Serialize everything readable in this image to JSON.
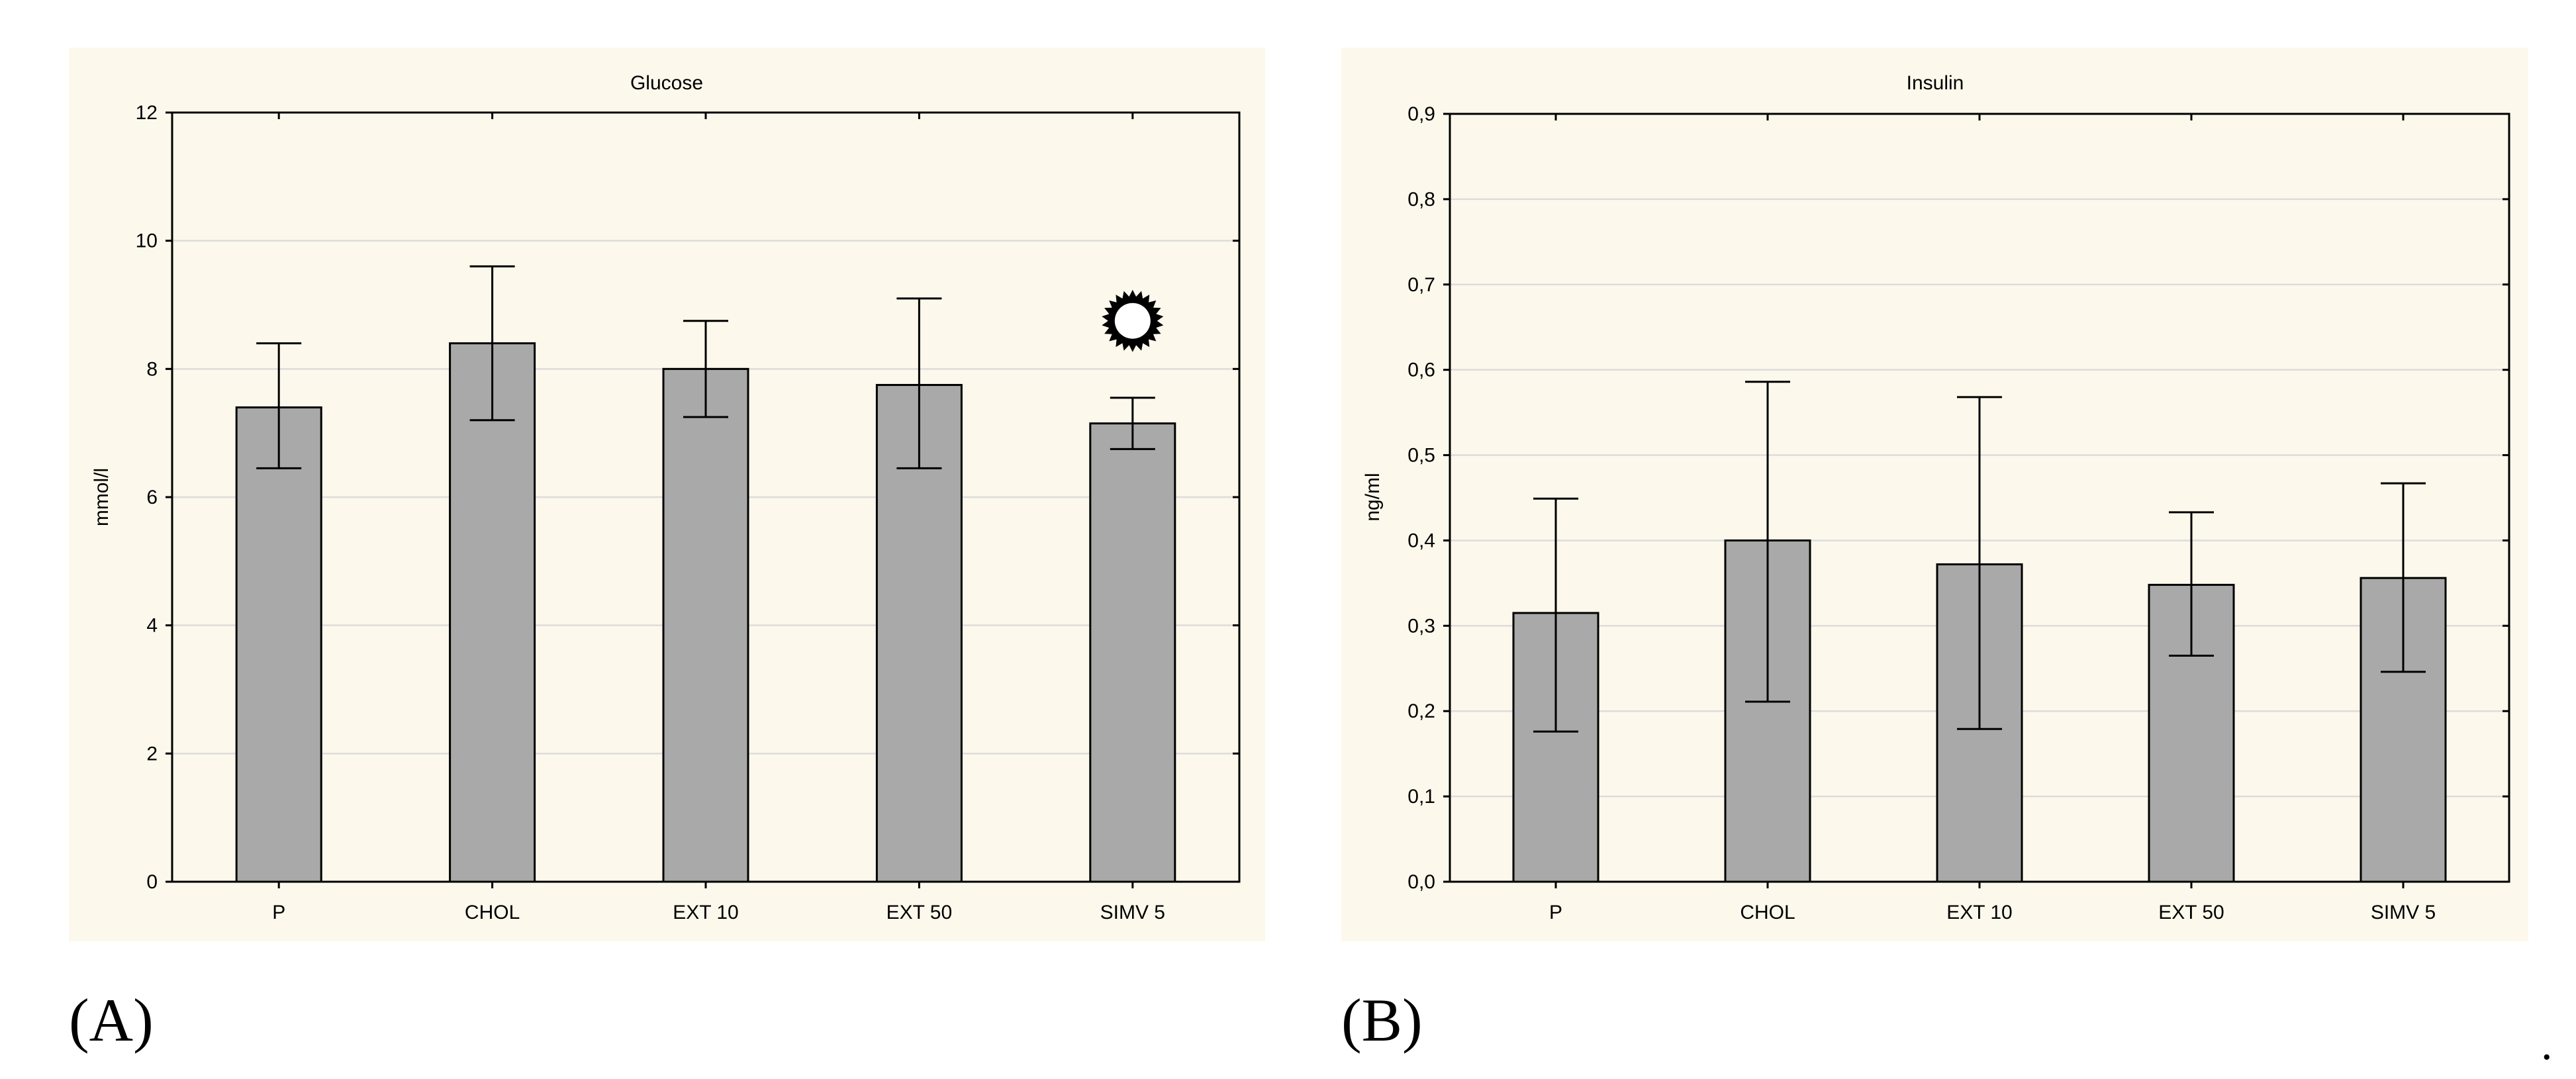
{
  "chart_data": [
    {
      "type": "bar",
      "panel_label": "(A)",
      "title": "Glucose",
      "xlabel": "",
      "ylabel": "mmol/l",
      "categories": [
        "P",
        "CHOL",
        "EXT 10",
        "EXT 50",
        "SIMV 5"
      ],
      "values": [
        7.4,
        8.4,
        8.0,
        7.75,
        7.15
      ],
      "error_low": [
        6.45,
        7.2,
        7.25,
        6.45,
        6.75
      ],
      "error_high": [
        8.4,
        9.6,
        8.75,
        9.1,
        7.55
      ],
      "ylim": [
        0,
        12
      ],
      "yticks": [
        0,
        2,
        4,
        6,
        8,
        10,
        12
      ],
      "ytick_labels": [
        "0",
        "2",
        "4",
        "6",
        "8",
        "10",
        "12"
      ],
      "grid": true,
      "annotations": [
        {
          "category": "SIMV 5",
          "y": 8.75,
          "symbol": "sun-marker"
        }
      ]
    },
    {
      "type": "bar",
      "panel_label": "(B)",
      "title": "Insulin",
      "xlabel": "",
      "ylabel": "ng/ml",
      "categories": [
        "P",
        "CHOL",
        "EXT 10",
        "EXT 50",
        "SIMV 5"
      ],
      "values": [
        0.315,
        0.4,
        0.372,
        0.348,
        0.356
      ],
      "error_low": [
        0.176,
        0.211,
        0.179,
        0.265,
        0.246
      ],
      "error_high": [
        0.449,
        0.586,
        0.568,
        0.433,
        0.467
      ],
      "ylim": [
        0,
        0.9
      ],
      "yticks": [
        0,
        0.1,
        0.2,
        0.3,
        0.4,
        0.5,
        0.6,
        0.7,
        0.8,
        0.9
      ],
      "ytick_labels": [
        "0,0",
        "0,1",
        "0,2",
        "0,3",
        "0,4",
        "0,5",
        "0,6",
        "0,7",
        "0,8",
        "0,9"
      ],
      "grid": true,
      "annotations": []
    }
  ],
  "trailing_mark": "."
}
